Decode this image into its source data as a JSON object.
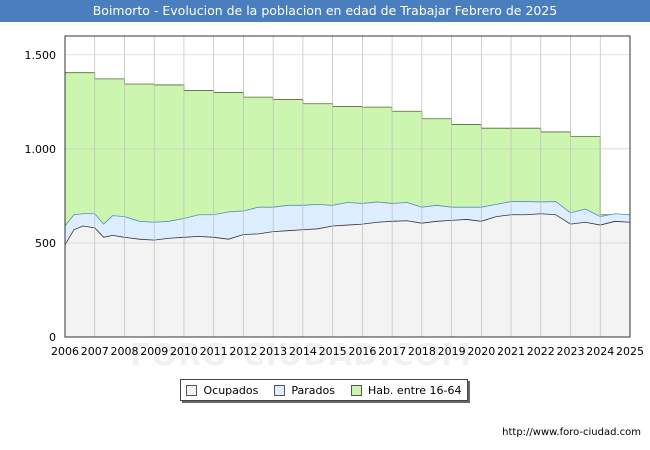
{
  "header": {
    "title": "Boimorto - Evolucion de la poblacion en edad de Trabajar Febrero de 2025"
  },
  "footer": {
    "credit": "http://www.foro-ciudad.com"
  },
  "watermark": "FORO-CIUDAD.COM",
  "colors": {
    "title_bg": "#4a7ebf",
    "hab": "#ccf5b0",
    "parados": "#dceeff",
    "ocupados": "#f3f3f3"
  },
  "chart_data": {
    "type": "area",
    "title": "Boimorto - Evolucion de la poblacion en edad de Trabajar Febrero de 2025",
    "xlabel": "",
    "ylabel": "",
    "xlim": [
      2006,
      2025
    ],
    "ylim": [
      0,
      1600
    ],
    "x_ticks": [
      "2006",
      "2007",
      "2008",
      "2009",
      "2010",
      "2011",
      "2012",
      "2013",
      "2014",
      "2015",
      "2016",
      "2017",
      "2018",
      "2019",
      "2020",
      "2021",
      "2022",
      "2023",
      "2024",
      "2025"
    ],
    "y_ticks": [
      {
        "value": 0,
        "label": "0"
      },
      {
        "value": 500,
        "label": "500"
      },
      {
        "value": 1000,
        "label": "1.000"
      },
      {
        "value": 1500,
        "label": "1.500"
      }
    ],
    "grid": true,
    "legend_position": "bottom-center",
    "series": [
      {
        "name": "Hab. entre 16-64",
        "step": true,
        "x": [
          2006,
          2007,
          2008,
          2009,
          2010,
          2011,
          2012,
          2013,
          2014,
          2015,
          2016,
          2017,
          2018,
          2019,
          2020,
          2021,
          2022,
          2023,
          2024.0
        ],
        "values": [
          1405,
          1372,
          1345,
          1340,
          1310,
          1300,
          1275,
          1262,
          1240,
          1225,
          1222,
          1200,
          1160,
          1130,
          1110,
          1110,
          1090,
          1065,
          650
        ]
      },
      {
        "name": "Parados",
        "x": [
          2006,
          2006.3,
          2006.6,
          2007,
          2007.3,
          2007.6,
          2008,
          2008.5,
          2009,
          2009.5,
          2010,
          2010.5,
          2011,
          2011.5,
          2012,
          2012.5,
          2013,
          2013.5,
          2014,
          2014.5,
          2015,
          2015.5,
          2016,
          2016.5,
          2017,
          2017.5,
          2018,
          2018.5,
          2019,
          2019.5,
          2020,
          2020.5,
          2021,
          2021.5,
          2022,
          2022.5,
          2023,
          2023.5,
          2024,
          2024.5,
          2025
        ],
        "values": [
          590,
          650,
          655,
          655,
          600,
          645,
          640,
          615,
          610,
          615,
          630,
          650,
          650,
          665,
          670,
          690,
          690,
          700,
          700,
          705,
          700,
          715,
          710,
          718,
          710,
          715,
          690,
          700,
          690,
          690,
          690,
          705,
          720,
          720,
          718,
          720,
          660,
          680,
          640,
          655,
          650
        ]
      },
      {
        "name": "Ocupados",
        "x": [
          2006,
          2006.3,
          2006.6,
          2007,
          2007.3,
          2007.6,
          2008,
          2008.5,
          2009,
          2009.5,
          2010,
          2010.5,
          2011,
          2011.5,
          2012,
          2012.5,
          2013,
          2013.5,
          2014,
          2014.5,
          2015,
          2015.5,
          2016,
          2016.5,
          2017,
          2017.5,
          2018,
          2018.5,
          2019,
          2019.5,
          2020,
          2020.5,
          2021,
          2021.5,
          2022,
          2022.5,
          2023,
          2023.5,
          2024,
          2024.5,
          2025
        ],
        "values": [
          490,
          570,
          590,
          580,
          530,
          540,
          530,
          520,
          515,
          525,
          530,
          535,
          530,
          520,
          545,
          548,
          560,
          565,
          570,
          575,
          590,
          595,
          600,
          610,
          615,
          618,
          605,
          615,
          620,
          625,
          615,
          640,
          650,
          650,
          655,
          650,
          600,
          610,
          595,
          615,
          610
        ]
      }
    ]
  },
  "legend": {
    "items": [
      {
        "label": "Ocupados",
        "color": "#f3f3f3"
      },
      {
        "label": "Parados",
        "color": "#dceeff"
      },
      {
        "label": "Hab. entre 16-64",
        "color": "#ccf5b0"
      }
    ]
  }
}
